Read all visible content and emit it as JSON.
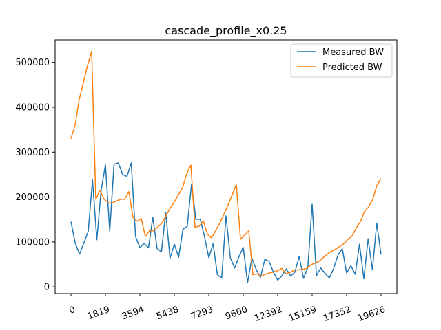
{
  "chart_data": {
    "type": "line",
    "title": "cascade_profile_x0.25",
    "xlabel": "",
    "ylabel": "",
    "x_tick_labels": [
      "0",
      "1819",
      "3594",
      "5438",
      "7293",
      "9600",
      "12392",
      "15159",
      "17352",
      "19626"
    ],
    "y_tick_values": [
      0,
      100000,
      200000,
      300000,
      400000,
      500000
    ],
    "y_tick_labels": [
      "0",
      "100000",
      "200000",
      "300000",
      "400000",
      "500000"
    ],
    "ylim": [
      -15000,
      550000
    ],
    "grid": false,
    "legend_position": "top-right",
    "series": [
      {
        "name": "Measured BW",
        "color": "#1f77b4",
        "values": [
          145000,
          97000,
          73000,
          98000,
          123000,
          238000,
          105000,
          215000,
          272000,
          124000,
          273000,
          276000,
          250000,
          246000,
          276000,
          112000,
          87000,
          97000,
          87000,
          155000,
          85000,
          78000,
          166000,
          64000,
          95000,
          66000,
          128000,
          135000,
          229000,
          150000,
          151000,
          112000,
          65000,
          96000,
          27000,
          20000,
          158000,
          65000,
          42000,
          67000,
          88000,
          9000,
          64000,
          39000,
          21000,
          61000,
          57000,
          33000,
          15000,
          25000,
          40000,
          24000,
          33000,
          68000,
          19000,
          43000,
          184000,
          25000,
          42000,
          30000,
          20000,
          41000,
          71000,
          85000,
          31000,
          47000,
          28000,
          95000,
          18000,
          107000,
          38000,
          142000,
          72000
        ]
      },
      {
        "name": "Predicted BW",
        "color": "#ff7f0e",
        "values": [
          330000,
          360000,
          418000,
          455000,
          493000,
          525000,
          195000,
          215000,
          195000,
          187000,
          187000,
          191000,
          195000,
          195000,
          212000,
          155000,
          146000,
          152000,
          112000,
          125000,
          125000,
          133000,
          142000,
          159000,
          175000,
          189000,
          205000,
          221000,
          252000,
          271000,
          133000,
          135000,
          147000,
          117000,
          109000,
          125000,
          142000,
          162000,
          182000,
          205000,
          228000,
          106000,
          115000,
          125000,
          27000,
          29000,
          24000,
          28000,
          31000,
          33000,
          36000,
          41000,
          29000,
          32000,
          37000,
          38000,
          39000,
          41000,
          49000,
          53000,
          57000,
          65000,
          73000,
          79000,
          84000,
          90000,
          96000,
          106000,
          113000,
          131000,
          145000,
          168000,
          178000,
          195000,
          226000,
          241000
        ]
      }
    ]
  }
}
